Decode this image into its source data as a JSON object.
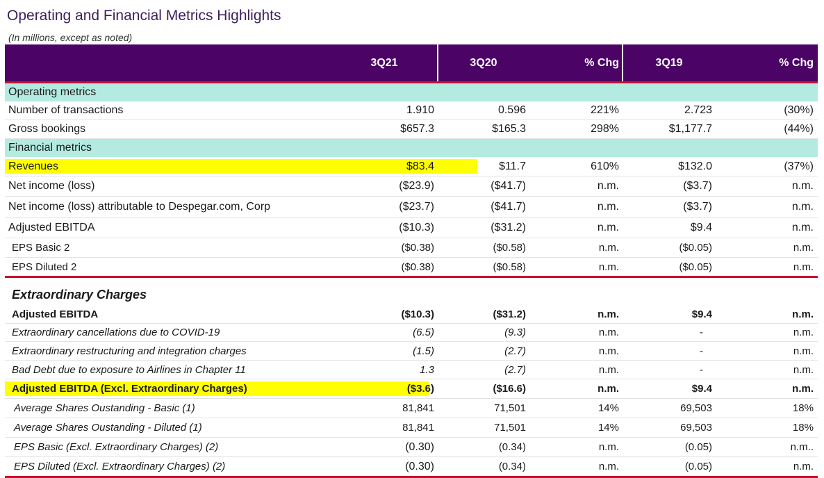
{
  "title": "Operating and Financial Metrics Highlights",
  "subtitle": "(In millions, except as noted)",
  "columns": [
    "3Q21",
    "3Q20",
    "% Chg",
    "3Q19",
    "% Chg"
  ],
  "sections": {
    "operating": "Operating metrics",
    "financial": "Financial metrics",
    "extraordinary": "Extraordinary Charges"
  },
  "rows": {
    "transactions": {
      "label": "Number of transactions",
      "v": [
        "1.910",
        "0.596",
        "221%",
        "2.723",
        "(30%)"
      ]
    },
    "gross_bookings": {
      "label": "Gross bookings",
      "v": [
        "$657.3",
        "$165.3",
        "298%",
        "$1,177.7",
        "(44%)"
      ]
    },
    "revenues": {
      "label": "Revenues",
      "v": [
        "$83.4",
        "$11.7",
        "610%",
        "$132.0",
        "(37%)"
      ]
    },
    "net_income": {
      "label": "Net income (loss)",
      "v": [
        "($23.9)",
        "($41.7)",
        "n.m.",
        "($3.7)",
        "n.m."
      ]
    },
    "net_income_attr": {
      "label": "Net income (loss) attributable to Despegar.com, Corp",
      "v": [
        "($23.7)",
        "($41.7)",
        "n.m.",
        "($3.7)",
        "n.m."
      ]
    },
    "adj_ebitda": {
      "label": "Adjusted EBITDA",
      "v": [
        "($10.3)",
        "($31.2)",
        "n.m.",
        "$9.4",
        "n.m."
      ]
    },
    "eps_basic": {
      "label": "EPS Basic 2",
      "v": [
        "($0.38)",
        "($0.58)",
        "n.m.",
        "($0.05)",
        "n.m."
      ]
    },
    "eps_diluted": {
      "label": "EPS Diluted 2",
      "v": [
        "($0.38)",
        "($0.58)",
        "n.m.",
        "($0.05)",
        "n.m."
      ]
    },
    "x_adj_ebitda": {
      "label": "Adjusted EBITDA",
      "v": [
        "($10.3)",
        "($31.2)",
        "n.m.",
        "$9.4",
        "n.m."
      ]
    },
    "x_covid": {
      "label": "Extraordinary cancellations due to COVID-19",
      "v": [
        "(6.5)",
        "(9.3)",
        "n.m.",
        "-",
        "n.m."
      ]
    },
    "x_restructuring": {
      "label": "Extraordinary restructuring and integration charges",
      "v": [
        "(1.5)",
        "(2.7)",
        "n.m.",
        "-",
        "n.m."
      ]
    },
    "x_bad_debt": {
      "label": "Bad Debt due to exposure to Airlines in Chapter 11",
      "v": [
        "1.3",
        "(2.7)",
        "n.m.",
        "-",
        "n.m."
      ]
    },
    "x_adj_ebitda_excl": {
      "label": "Adjusted EBITDA (Excl. Extraordinary Charges)",
      "v": [
        "($3.6)",
        "($16.6)",
        "n.m.",
        "$9.4",
        "n.m."
      ]
    },
    "x_shares_basic": {
      "label": "Average Shares Oustanding - Basic (1)",
      "v": [
        "81,841",
        "71,501",
        "14%",
        "69,503",
        "18%"
      ]
    },
    "x_shares_diluted": {
      "label": "Average Shares Oustanding - Diluted (1)",
      "v": [
        "81,841",
        "71,501",
        "14%",
        "69,503",
        "18%"
      ]
    },
    "x_eps_basic": {
      "label": "EPS Basic (Excl. Extraordinary Charges) (2)",
      "v": [
        "(0.30)",
        "(0.34)",
        "n.m.",
        "(0.05)",
        "n.m.."
      ]
    },
    "x_eps_diluted": {
      "label": "EPS Diluted (Excl. Extraordinary Charges) (2)",
      "v": [
        "(0.30)",
        "(0.34)",
        "n.m.",
        "(0.05)",
        "n.m."
      ]
    }
  },
  "colors": {
    "header_bg": "#4b0466",
    "section_bg": "#b3ebe0",
    "accent_red": "#c8102e",
    "highlight": "#ffff00"
  }
}
